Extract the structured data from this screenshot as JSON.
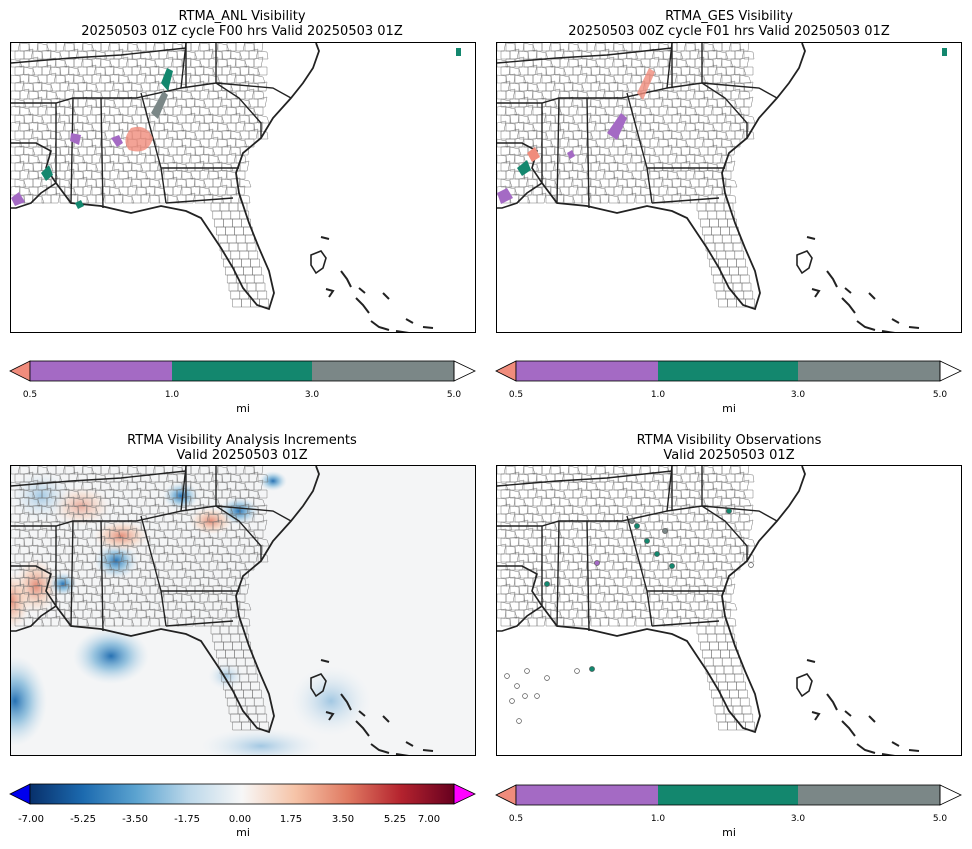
{
  "panels": [
    {
      "title_line1": "RTMA_ANL Visibility",
      "title_line2": "20250503 01Z cycle F00 hrs Valid 20250503 01Z"
    },
    {
      "title_line1": "RTMA_GES Visibility",
      "title_line2": "20250503 00Z cycle F01 hrs Valid 20250503 01Z"
    },
    {
      "title_line1": "RTMA Visibility Analysis Increments",
      "title_line2": "Valid 20250503 01Z"
    },
    {
      "title_line1": "RTMA Visibility Observations",
      "title_line2": "Valid 20250503 01Z"
    }
  ],
  "visibility_colorbar": {
    "ticks": [
      "0.5",
      "1.0",
      "3.0",
      "5.0"
    ],
    "unit": "mi",
    "colors": {
      "under": "#f08c7c",
      "bin_0_5_to_1": "#a46ac4",
      "bin_1_to_3": "#13876e",
      "bin_3_to_5": "#7b8787",
      "over": "#ffffff"
    }
  },
  "increment_colorbar": {
    "ticks": [
      "-7.00",
      "-5.25",
      "-3.50",
      "-1.75",
      "0.00",
      "1.75",
      "3.50",
      "5.25",
      "7.00"
    ],
    "unit": "mi",
    "colors": {
      "under": "#0000ee",
      "over": "#ff00ff",
      "gradient": [
        "#08306b",
        "#1c6aaf",
        "#5ba3d0",
        "#bcd8ea",
        "#f7f7f7",
        "#f6c4a8",
        "#e07a62",
        "#b4232e",
        "#67001f"
      ]
    }
  }
}
